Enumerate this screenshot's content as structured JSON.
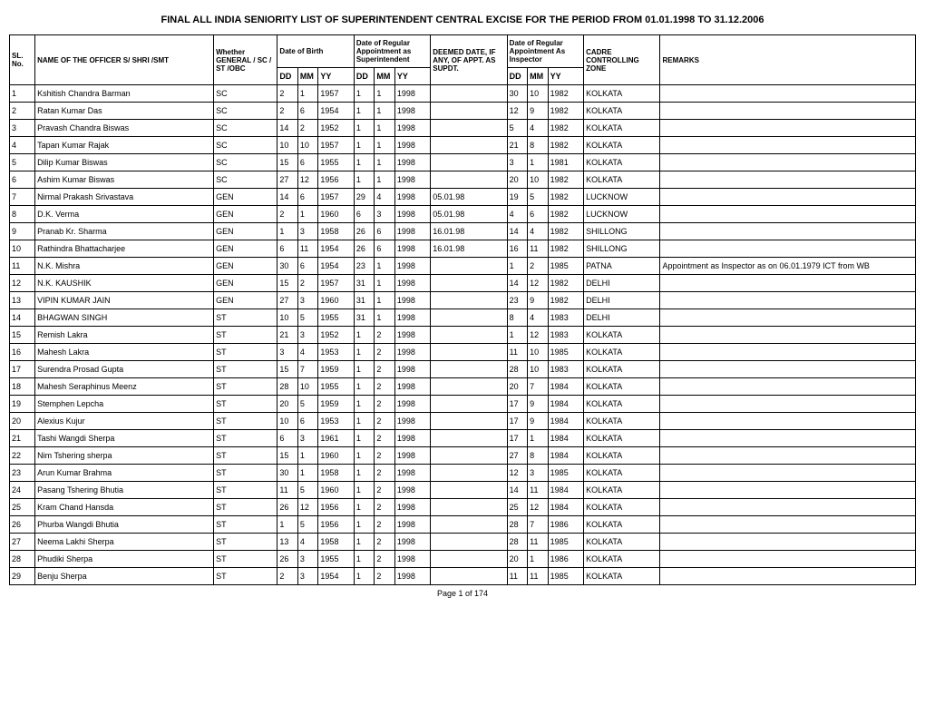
{
  "title": "FINAL ALL INDIA SENIORITY LIST OF  SUPERINTENDENT CENTRAL EXCISE FOR THE PERIOD FROM 01.01.1998 TO 31.12.2006",
  "headers": {
    "sl": "SL. No.",
    "name": "NAME OF THE OFFICER S/ SHRI /SMT",
    "category": "Whether GENERAL / SC / ST /OBC",
    "dob": "Date of Birth",
    "reg_supt": "Date of Regular Appointment as Superintendent",
    "deemed": "DEEMED DATE, IF ANY, OF APPT. AS SUPDT.",
    "reg_insp": "Date of Regular Appointment As Inspector",
    "zone": "CADRE CONTROLLING ZONE",
    "remarks": "REMARKS",
    "dd": "DD",
    "mm": "MM",
    "yy": "YY"
  },
  "rows": [
    {
      "sl": "1",
      "name": "Kshitish Chandra Barman",
      "cat": "SC",
      "bdd": "2",
      "bmm": "1",
      "byy": "1957",
      "rdd": "1",
      "rmm": "1",
      "ryy": "1998",
      "deem": "",
      "idd": "30",
      "imm": "10",
      "iyy": "1982",
      "zone": "KOLKATA",
      "rem": ""
    },
    {
      "sl": "2",
      "name": "Ratan Kumar Das",
      "cat": "SC",
      "bdd": "2",
      "bmm": "6",
      "byy": "1954",
      "rdd": "1",
      "rmm": "1",
      "ryy": "1998",
      "deem": "",
      "idd": "12",
      "imm": "9",
      "iyy": "1982",
      "zone": "KOLKATA",
      "rem": ""
    },
    {
      "sl": "3",
      "name": "Pravash Chandra Biswas",
      "cat": "SC",
      "bdd": "14",
      "bmm": "2",
      "byy": "1952",
      "rdd": "1",
      "rmm": "1",
      "ryy": "1998",
      "deem": "",
      "idd": "5",
      "imm": "4",
      "iyy": "1982",
      "zone": "KOLKATA",
      "rem": ""
    },
    {
      "sl": "4",
      "name": "Tapan Kumar Rajak",
      "cat": "SC",
      "bdd": "10",
      "bmm": "10",
      "byy": "1957",
      "rdd": "1",
      "rmm": "1",
      "ryy": "1998",
      "deem": "",
      "idd": "21",
      "imm": "8",
      "iyy": "1982",
      "zone": "KOLKATA",
      "rem": ""
    },
    {
      "sl": "5",
      "name": "Dilip Kumar Biswas",
      "cat": "SC",
      "bdd": "15",
      "bmm": "6",
      "byy": "1955",
      "rdd": "1",
      "rmm": "1",
      "ryy": "1998",
      "deem": "",
      "idd": "3",
      "imm": "1",
      "iyy": "1981",
      "zone": "KOLKATA",
      "rem": ""
    },
    {
      "sl": "6",
      "name": "Ashim Kumar Biswas",
      "cat": "SC",
      "bdd": "27",
      "bmm": "12",
      "byy": "1956",
      "rdd": "1",
      "rmm": "1",
      "ryy": "1998",
      "deem": "",
      "idd": "20",
      "imm": "10",
      "iyy": "1982",
      "zone": "KOLKATA",
      "rem": ""
    },
    {
      "sl": "7",
      "name": "Nirmal Prakash Srivastava",
      "cat": "GEN",
      "bdd": "14",
      "bmm": "6",
      "byy": "1957",
      "rdd": "29",
      "rmm": "4",
      "ryy": "1998",
      "deem": "05.01.98",
      "idd": "19",
      "imm": "5",
      "iyy": "1982",
      "zone": "LUCKNOW",
      "rem": ""
    },
    {
      "sl": "8",
      "name": "D.K. Verma",
      "cat": "GEN",
      "bdd": "2",
      "bmm": "1",
      "byy": "1960",
      "rdd": "6",
      "rmm": "3",
      "ryy": "1998",
      "deem": "05.01.98",
      "idd": "4",
      "imm": "6",
      "iyy": "1982",
      "zone": "LUCKNOW",
      "rem": ""
    },
    {
      "sl": "9",
      "name": "Pranab Kr. Sharma",
      "cat": "GEN",
      "bdd": "1",
      "bmm": "3",
      "byy": "1958",
      "rdd": "26",
      "rmm": "6",
      "ryy": "1998",
      "deem": "16.01.98",
      "idd": "14",
      "imm": "4",
      "iyy": "1982",
      "zone": "SHILLONG",
      "rem": ""
    },
    {
      "sl": "10",
      "name": "Rathindra Bhattacharjee",
      "cat": "GEN",
      "bdd": "6",
      "bmm": "11",
      "byy": "1954",
      "rdd": "26",
      "rmm": "6",
      "ryy": "1998",
      "deem": "16.01.98",
      "idd": "16",
      "imm": "11",
      "iyy": "1982",
      "zone": "SHILLONG",
      "rem": ""
    },
    {
      "sl": "11",
      "name": "N.K. Mishra",
      "cat": "GEN",
      "bdd": "30",
      "bmm": "6",
      "byy": "1954",
      "rdd": "23",
      "rmm": "1",
      "ryy": "1998",
      "deem": "",
      "idd": "1",
      "imm": "2",
      "iyy": "1985",
      "zone": "PATNA",
      "rem": "Appointment as Inspector as on 06.01.1979  ICT from WB"
    },
    {
      "sl": "12",
      "name": "N.K. KAUSHIK",
      "cat": "GEN",
      "bdd": "15",
      "bmm": "2",
      "byy": "1957",
      "rdd": "31",
      "rmm": "1",
      "ryy": "1998",
      "deem": "",
      "idd": "14",
      "imm": "12",
      "iyy": "1982",
      "zone": "DELHI",
      "rem": ""
    },
    {
      "sl": "13",
      "name": "VIPIN KUMAR JAIN",
      "cat": "GEN",
      "bdd": "27",
      "bmm": "3",
      "byy": "1960",
      "rdd": "31",
      "rmm": "1",
      "ryy": "1998",
      "deem": "",
      "idd": "23",
      "imm": "9",
      "iyy": "1982",
      "zone": "DELHI",
      "rem": ""
    },
    {
      "sl": "14",
      "name": "BHAGWAN SINGH",
      "cat": "ST",
      "bdd": "10",
      "bmm": "5",
      "byy": "1955",
      "rdd": "31",
      "rmm": "1",
      "ryy": "1998",
      "deem": "",
      "idd": "8",
      "imm": "4",
      "iyy": "1983",
      "zone": "DELHI",
      "rem": ""
    },
    {
      "sl": "15",
      "name": "Remish Lakra",
      "cat": "ST",
      "bdd": "21",
      "bmm": "3",
      "byy": "1952",
      "rdd": "1",
      "rmm": "2",
      "ryy": "1998",
      "deem": "",
      "idd": "1",
      "imm": "12",
      "iyy": "1983",
      "zone": "KOLKATA",
      "rem": ""
    },
    {
      "sl": "16",
      "name": "Mahesh Lakra",
      "cat": "ST",
      "bdd": "3",
      "bmm": "4",
      "byy": "1953",
      "rdd": "1",
      "rmm": "2",
      "ryy": "1998",
      "deem": "",
      "idd": "11",
      "imm": "10",
      "iyy": "1985",
      "zone": "KOLKATA",
      "rem": ""
    },
    {
      "sl": "17",
      "name": "Surendra Prosad Gupta",
      "cat": "ST",
      "bdd": "15",
      "bmm": "7",
      "byy": "1959",
      "rdd": "1",
      "rmm": "2",
      "ryy": "1998",
      "deem": "",
      "idd": "28",
      "imm": "10",
      "iyy": "1983",
      "zone": "KOLKATA",
      "rem": ""
    },
    {
      "sl": "18",
      "name": "Mahesh Seraphinus Meenz",
      "cat": "ST",
      "bdd": "28",
      "bmm": "10",
      "byy": "1955",
      "rdd": "1",
      "rmm": "2",
      "ryy": "1998",
      "deem": "",
      "idd": "20",
      "imm": "7",
      "iyy": "1984",
      "zone": "KOLKATA",
      "rem": ""
    },
    {
      "sl": "19",
      "name": "Stemphen Lepcha",
      "cat": "ST",
      "bdd": "20",
      "bmm": "5",
      "byy": "1959",
      "rdd": "1",
      "rmm": "2",
      "ryy": "1998",
      "deem": "",
      "idd": "17",
      "imm": "9",
      "iyy": "1984",
      "zone": "KOLKATA",
      "rem": ""
    },
    {
      "sl": "20",
      "name": "Alexius Kujur",
      "cat": "ST",
      "bdd": "10",
      "bmm": "6",
      "byy": "1953",
      "rdd": "1",
      "rmm": "2",
      "ryy": "1998",
      "deem": "",
      "idd": "17",
      "imm": "9",
      "iyy": "1984",
      "zone": "KOLKATA",
      "rem": ""
    },
    {
      "sl": "21",
      "name": "Tashi Wangdi Sherpa",
      "cat": "ST",
      "bdd": "6",
      "bmm": "3",
      "byy": "1961",
      "rdd": "1",
      "rmm": "2",
      "ryy": "1998",
      "deem": "",
      "idd": "17",
      "imm": "1",
      "iyy": "1984",
      "zone": "KOLKATA",
      "rem": ""
    },
    {
      "sl": "22",
      "name": "Nim Tshering sherpa",
      "cat": "ST",
      "bdd": "15",
      "bmm": "1",
      "byy": "1960",
      "rdd": "1",
      "rmm": "2",
      "ryy": "1998",
      "deem": "",
      "idd": "27",
      "imm": "8",
      "iyy": "1984",
      "zone": "KOLKATA",
      "rem": ""
    },
    {
      "sl": "23",
      "name": "Arun Kumar Brahma",
      "cat": "ST",
      "bdd": "30",
      "bmm": "1",
      "byy": "1958",
      "rdd": "1",
      "rmm": "2",
      "ryy": "1998",
      "deem": "",
      "idd": "12",
      "imm": "3",
      "iyy": "1985",
      "zone": "KOLKATA",
      "rem": ""
    },
    {
      "sl": "24",
      "name": "Pasang Tshering Bhutia",
      "cat": "ST",
      "bdd": "11",
      "bmm": "5",
      "byy": "1960",
      "rdd": "1",
      "rmm": "2",
      "ryy": "1998",
      "deem": "",
      "idd": "14",
      "imm": "11",
      "iyy": "1984",
      "zone": "KOLKATA",
      "rem": ""
    },
    {
      "sl": "25",
      "name": "Kram Chand Hansda",
      "cat": "ST",
      "bdd": "26",
      "bmm": "12",
      "byy": "1956",
      "rdd": "1",
      "rmm": "2",
      "ryy": "1998",
      "deem": "",
      "idd": "25",
      "imm": "12",
      "iyy": "1984",
      "zone": "KOLKATA",
      "rem": ""
    },
    {
      "sl": "26",
      "name": "Phurba Wangdi Bhutia",
      "cat": "ST",
      "bdd": "1",
      "bmm": "5",
      "byy": "1956",
      "rdd": "1",
      "rmm": "2",
      "ryy": "1998",
      "deem": "",
      "idd": "28",
      "imm": "7",
      "iyy": "1986",
      "zone": "KOLKATA",
      "rem": ""
    },
    {
      "sl": "27",
      "name": "Neema Lakhi Sherpa",
      "cat": "ST",
      "bdd": "13",
      "bmm": "4",
      "byy": "1958",
      "rdd": "1",
      "rmm": "2",
      "ryy": "1998",
      "deem": "",
      "idd": "28",
      "imm": "11",
      "iyy": "1985",
      "zone": "KOLKATA",
      "rem": ""
    },
    {
      "sl": "28",
      "name": "Phudiki Sherpa",
      "cat": "ST",
      "bdd": "26",
      "bmm": "3",
      "byy": "1955",
      "rdd": "1",
      "rmm": "2",
      "ryy": "1998",
      "deem": "",
      "idd": "20",
      "imm": "1",
      "iyy": "1986",
      "zone": "KOLKATA",
      "rem": ""
    },
    {
      "sl": "29",
      "name": "Benju Sherpa",
      "cat": "ST",
      "bdd": "2",
      "bmm": "3",
      "byy": "1954",
      "rdd": "1",
      "rmm": "2",
      "ryy": "1998",
      "deem": "",
      "idd": "11",
      "imm": "11",
      "iyy": "1985",
      "zone": "KOLKATA",
      "rem": ""
    }
  ],
  "footer": "Page 1 of 174"
}
